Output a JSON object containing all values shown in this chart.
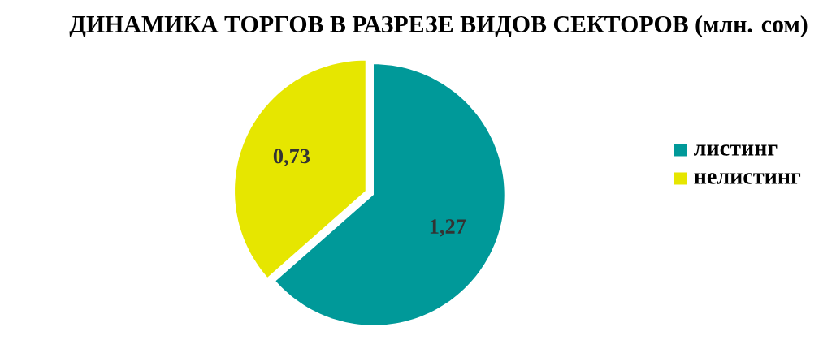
{
  "chart_data": {
    "type": "pie",
    "title": "ДИНАМИКА ТОРГОВ В РАЗРЕЗЕ ВИДОВ СЕКТОРОВ  (млн. сом)",
    "categories": [
      "листинг",
      "нелистинг"
    ],
    "values": [
      1.27,
      0.73
    ],
    "value_labels": [
      "1,27",
      "0,73"
    ],
    "colors": [
      "#009999",
      "#e6e600"
    ],
    "legend": "right"
  }
}
